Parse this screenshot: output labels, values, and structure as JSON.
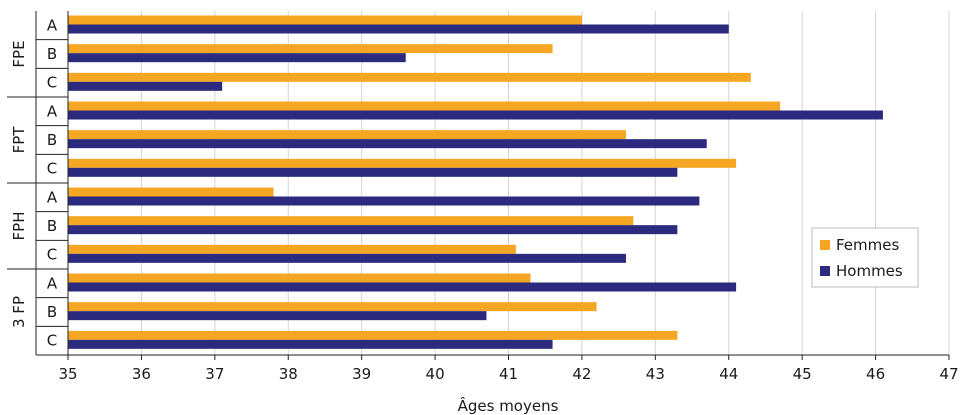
{
  "chart_data": {
    "type": "bar",
    "orientation": "horizontal",
    "xlabel": "Âges moyens",
    "xlim": [
      35,
      47
    ],
    "xticks": [
      "35",
      "36",
      "37",
      "38",
      "39",
      "40",
      "41",
      "42",
      "43",
      "44",
      "45",
      "46",
      "47"
    ],
    "grid": true,
    "legend_position": "right",
    "groups": [
      {
        "name": "FPE",
        "categories": [
          "A",
          "B",
          "C"
        ]
      },
      {
        "name": "FPT",
        "categories": [
          "A",
          "B",
          "C"
        ]
      },
      {
        "name": "FPH",
        "categories": [
          "A",
          "B",
          "C"
        ]
      },
      {
        "name": "3 FP",
        "categories": [
          "A",
          "B",
          "C"
        ]
      }
    ],
    "series": [
      {
        "name": "Femmes",
        "color": "#f5a623",
        "values": [
          42.0,
          41.6,
          44.3,
          44.7,
          42.6,
          44.1,
          37.8,
          42.7,
          41.1,
          41.3,
          42.2,
          43.3
        ]
      },
      {
        "name": "Hommes",
        "color": "#2b2a7e",
        "values": [
          44.0,
          39.6,
          37.1,
          46.1,
          43.7,
          43.3,
          43.6,
          43.3,
          42.6,
          44.1,
          40.7,
          41.6
        ]
      }
    ]
  }
}
